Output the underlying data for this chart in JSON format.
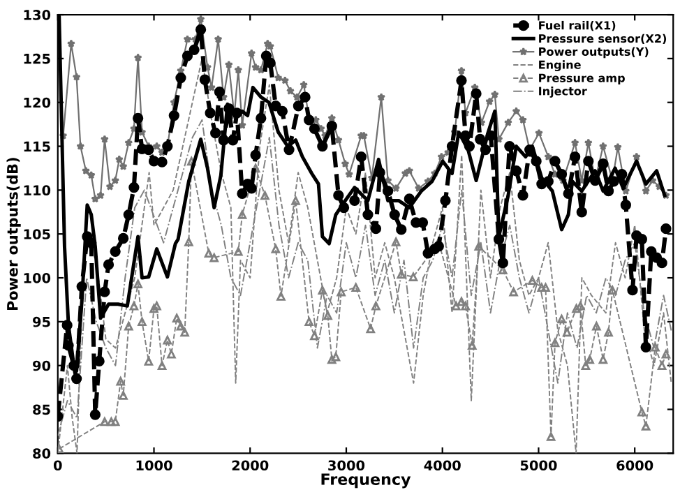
{
  "chart_data": {
    "type": "line",
    "xlabel": "Frequency",
    "ylabel": "Power outputs(dB)",
    "xlim": [
      0,
      6400
    ],
    "ylim": [
      80,
      130
    ],
    "xticks": [
      0,
      1000,
      2000,
      3000,
      4000,
      5000,
      6000
    ],
    "yticks": [
      80,
      85,
      90,
      95,
      100,
      105,
      110,
      115,
      120,
      125,
      130
    ],
    "grid": false,
    "legend": "top right",
    "series": [
      {
        "name": "Fuel rail(X1)",
        "color": "#000000",
        "marker": "circle",
        "line_style": "dashed",
        "x": [
          0,
          97,
          111,
          167,
          195,
          250,
          306,
          348,
          389,
          431,
          487,
          528,
          598,
          681,
          737,
          792,
          834,
          876,
          945,
          1000,
          1084,
          1140,
          1209,
          1279,
          1348,
          1418,
          1487,
          1529,
          1585,
          1640,
          1682,
          1724,
          1779,
          1821,
          1863,
          1918,
          1974,
          2015,
          2057,
          2113,
          2168,
          2210,
          2266,
          2335,
          2405,
          2502,
          2572,
          2613,
          2669,
          2752,
          2850,
          2919,
          2975,
          3086,
          3155,
          3225,
          3308,
          3350,
          3433,
          3503,
          3572,
          3656,
          3725,
          3795,
          3850,
          3920,
          3961,
          4031,
          4100,
          4198,
          4240,
          4281,
          4351,
          4392,
          4448,
          4503,
          4587,
          4629,
          4698,
          4768,
          4837,
          4907,
          4976,
          5032,
          5101,
          5171,
          5240,
          5310,
          5379,
          5449,
          5518,
          5588,
          5671,
          5727,
          5782,
          5866,
          5907,
          5977,
          6019,
          6074,
          6116,
          6172,
          6228,
          6283,
          6325
        ],
        "values": [
          84.2,
          94.6,
          92.3,
          90,
          88.5,
          99,
          104.7,
          104,
          84.4,
          90.5,
          98.4,
          101.5,
          103,
          104.5,
          107.2,
          110.3,
          118.2,
          114.7,
          114.6,
          113.3,
          113.2,
          115,
          118.5,
          122.8,
          125.3,
          126,
          128.3,
          122.6,
          118.8,
          116.5,
          121.2,
          115.7,
          119.3,
          115.7,
          118.8,
          109.6,
          110.7,
          110.2,
          114,
          118.2,
          125.3,
          124.5,
          119.6,
          119,
          114.6,
          119.6,
          120.6,
          118,
          117,
          115,
          117.3,
          109.4,
          108,
          108.8,
          113.8,
          107.2,
          105.6,
          112,
          109.9,
          107.2,
          105.5,
          109,
          106.3,
          106.3,
          102.8,
          103.3,
          103.6,
          108.8,
          115,
          122.5,
          116.2,
          115,
          121,
          115.8,
          114.6,
          116.2,
          104.4,
          101.7,
          115,
          112.2,
          109.4,
          114.6,
          113.3,
          110.7,
          111,
          113.3,
          111.8,
          109.6,
          113.8,
          107.5,
          113.3,
          111.1,
          113,
          109.9,
          111,
          111.8,
          108.3,
          98.6,
          104.8,
          104.4,
          92.1,
          103,
          102.3,
          101.7,
          105.6
        ]
      },
      {
        "name": "Pressure sensor(X2)",
        "color": "#000000",
        "marker": "none",
        "line_style": "solid",
        "x": [
          0,
          14,
          70,
          111,
          167,
          195,
          250,
          306,
          348,
          389,
          445,
          528,
          626,
          723,
          834,
          876,
          945,
          1029,
          1140,
          1223,
          1251,
          1362,
          1487,
          1557,
          1626,
          1696,
          1765,
          1835,
          1918,
          1974,
          2029,
          2113,
          2196,
          2293,
          2391,
          2474,
          2544,
          2641,
          2711,
          2752,
          2822,
          2891,
          2989,
          3086,
          3225,
          3336,
          3433,
          3545,
          3656,
          3781,
          3892,
          4003,
          4100,
          4170,
          4267,
          4351,
          4476,
          4545,
          4587,
          4684,
          4768,
          4865,
          4935,
          5032,
          5143,
          5240,
          5310,
          5351,
          5449,
          5588,
          5671,
          5796,
          5880,
          6019,
          6116,
          6228,
          6311
        ],
        "values": [
          130,
          129.8,
          103.6,
          94.6,
          90,
          89.4,
          97.3,
          108.3,
          107.2,
          103.6,
          95.4,
          97,
          97,
          96.8,
          104.7,
          100,
          100.1,
          103.3,
          100.1,
          103.9,
          104.4,
          111,
          115.8,
          112.5,
          108,
          111.7,
          119.8,
          118.5,
          119,
          118.5,
          121.7,
          120.6,
          120,
          116.6,
          115,
          115.7,
          113.8,
          111.9,
          110.7,
          104.7,
          103.9,
          107.2,
          108.8,
          110.3,
          108.8,
          113.5,
          108.8,
          108.8,
          108,
          109.9,
          111,
          113.3,
          111.9,
          116.6,
          114.6,
          111.1,
          116.6,
          119,
          104.7,
          109.4,
          115,
          113.8,
          115,
          111.4,
          109.9,
          105.5,
          107.2,
          111,
          109.9,
          112.2,
          109.9,
          112.5,
          110.2,
          113.3,
          110.7,
          112.2,
          109.4
        ]
      },
      {
        "name": "Power outputs(Y)",
        "color": "#707070",
        "marker": "star",
        "line_style": "solid",
        "x": [
          56,
          139,
          195,
          236,
          292,
          348,
          389,
          445,
          487,
          542,
          598,
          639,
          681,
          737,
          792,
          834,
          876,
          945,
          1029,
          1084,
          1140,
          1209,
          1279,
          1348,
          1432,
          1487,
          1557,
          1599,
          1668,
          1724,
          1779,
          1835,
          1877,
          1918,
          2015,
          2057,
          2113,
          2182,
          2210,
          2293,
          2363,
          2419,
          2488,
          2558,
          2613,
          2683,
          2738,
          2780,
          2850,
          2919,
          2989,
          3030,
          3155,
          3183,
          3266,
          3364,
          3433,
          3517,
          3614,
          3656,
          3753,
          3850,
          3920,
          3990,
          4059,
          4128,
          4198,
          4240,
          4337,
          4406,
          4490,
          4545,
          4587,
          4684,
          4768,
          4837,
          4907,
          5004,
          5101,
          5171,
          5254,
          5379,
          5449,
          5518,
          5588,
          5671,
          5768,
          5824,
          5907,
          6019,
          6116,
          6186,
          6255,
          6325
        ],
        "values": [
          116.2,
          126.7,
          122.9,
          115,
          112.2,
          111.7,
          109,
          109.4,
          115.8,
          110.4,
          111.1,
          113.5,
          112.7,
          115.4,
          117,
          125.1,
          116.6,
          115,
          115,
          114.3,
          115,
          120,
          123.6,
          127.2,
          127.2,
          129.5,
          124,
          121.7,
          127.2,
          120.6,
          124.3,
          118.5,
          123.7,
          117.4,
          125.6,
          124,
          123.7,
          126.7,
          126.4,
          122.8,
          122.5,
          121.3,
          120.6,
          122,
          118.2,
          118,
          117,
          116.2,
          118.2,
          115.7,
          113,
          111.8,
          116.2,
          116.2,
          111.4,
          120.6,
          111.1,
          110.2,
          111.9,
          112.2,
          110.2,
          111,
          111.9,
          113.8,
          114.3,
          116.6,
          123.6,
          118.8,
          121.7,
          117.7,
          120.1,
          120.9,
          115.8,
          117.7,
          119,
          118,
          114.6,
          116.5,
          113.8,
          111.8,
          111.1,
          115.4,
          111.1,
          115.4,
          111.1,
          115,
          111.1,
          114.9,
          109.9,
          113.8,
          109.9,
          111.1,
          110.4,
          109.4
        ]
      },
      {
        "name": "Engine",
        "color": "#808080",
        "marker": "none",
        "line_style": "dashed",
        "x": [
          0,
          100,
          150,
          200,
          250,
          300,
          400,
          500,
          600,
          700,
          800,
          900,
          950,
          1000,
          1100,
          1200,
          1300,
          1400,
          1500,
          1600,
          1700,
          1800,
          1850,
          1900,
          2000,
          2100,
          2200,
          2300,
          2400,
          2500,
          2600,
          2700,
          2800,
          2900,
          3000,
          3100,
          3200,
          3300,
          3400,
          3500,
          3600,
          3700,
          3800,
          3900,
          4000,
          4100,
          4200,
          4300,
          4400,
          4500,
          4600,
          4700,
          4800,
          4900,
          5000,
          5100,
          5200,
          5300,
          5390,
          5450,
          5550,
          5700,
          5800,
          5900,
          6000,
          6100,
          6200,
          6300,
          6380
        ],
        "values": [
          80,
          90,
          84,
          80,
          98,
          104,
          102,
          93,
          92,
          96,
          100,
          108,
          112,
          106,
          108,
          110,
          115,
          120,
          125,
          118,
          112,
          108,
          88,
          102,
          100,
          115,
          122,
          110,
          104,
          112,
          108,
          102,
          96,
          100,
          108,
          105,
          112,
          100,
          104,
          100,
          94,
          88,
          98,
          104,
          108,
          96,
          114,
          86,
          110,
          100,
          108,
          112,
          102,
          98,
          100,
          104,
          94,
          90,
          80,
          100,
          98,
          96,
          104,
          100,
          106,
          94,
          90,
          96,
          88
        ]
      },
      {
        "name": "Pressure amp",
        "color": "#808080",
        "marker": "triangle",
        "line_style": "dashed",
        "x": [
          14,
          487,
          556,
          598,
          653,
          681,
          737,
          792,
          834,
          876,
          945,
          1000,
          1029,
          1084,
          1140,
          1181,
          1237,
          1279,
          1320,
          1362,
          1390,
          1570,
          1626,
          1877,
          1918,
          2057,
          2154,
          2266,
          2321,
          2474,
          2613,
          2669,
          2752,
          2808,
          2850,
          2891,
          2947,
          3100,
          3253,
          3308,
          3517,
          3572,
          3697,
          3961,
          4142,
          4198,
          4240,
          4309,
          4378,
          4629,
          4740,
          4935,
          5032,
          5073,
          5129,
          5171,
          5240,
          5296,
          5393,
          5435,
          5490,
          5532,
          5602,
          5671,
          5727,
          5768,
          6074,
          6116,
          6213,
          6283,
          6325
        ],
        "values": [
          80.5,
          83.6,
          83.6,
          83.6,
          88.2,
          86.6,
          94.5,
          96.8,
          99.3,
          95,
          90.5,
          96.5,
          96.8,
          90,
          92.9,
          91.3,
          95.4,
          94.5,
          93.8,
          104.1,
          113.3,
          102.8,
          102.3,
          103,
          107.2,
          112.5,
          109.4,
          103.3,
          97.9,
          108.8,
          95,
          93.4,
          98.6,
          95.7,
          90.7,
          91,
          98.4,
          98.9,
          94.2,
          96.8,
          104.1,
          100.4,
          100.1,
          104.1,
          96.8,
          97.3,
          96.8,
          92.3,
          103.6,
          100.9,
          98.4,
          99.7,
          98.9,
          98.9,
          81.9,
          92.6,
          95.3,
          93.8,
          96.5,
          96.8,
          90,
          90.7,
          94.5,
          90.7,
          93.8,
          98.6,
          84.7,
          83.1,
          92.1,
          90,
          91.3
        ]
      },
      {
        "name": "Injector",
        "color": "#808080",
        "marker": "none",
        "line_style": "dashdot",
        "x": [
          0,
          100,
          200,
          300,
          400,
          500,
          600,
          700,
          800,
          900,
          1000,
          1100,
          1200,
          1300,
          1400,
          1500,
          1600,
          1700,
          1800,
          1900,
          2000,
          2100,
          2200,
          2300,
          2400,
          2500,
          2600,
          2700,
          2800,
          2900,
          3000,
          3100,
          3200,
          3300,
          3400,
          3500,
          3600,
          3700,
          3800,
          3900,
          4000,
          4100,
          4200,
          4300,
          4400,
          4500,
          4600,
          4700,
          4800,
          4900,
          5000,
          5100,
          5200,
          5300,
          5400,
          5500,
          5600,
          5700,
          5800,
          5900,
          6000,
          6100,
          6200,
          6300,
          6380
        ],
        "values": [
          82,
          86,
          84,
          100,
          95,
          92,
          90,
          100,
          108,
          110,
          107,
          104,
          108,
          112,
          116,
          118,
          110,
          106,
          100,
          98,
          104,
          110,
          116,
          106,
          100,
          104,
          102,
          92,
          98,
          96,
          104,
          100,
          106,
          98,
          102,
          96,
          102,
          92,
          100,
          102,
          106,
          100,
          110,
          98,
          104,
          96,
          102,
          106,
          100,
          96,
          100,
          94,
          88,
          96,
          92,
          98,
          96,
          100,
          98,
          102,
          104,
          96,
          92,
          98,
          94
        ]
      }
    ]
  }
}
